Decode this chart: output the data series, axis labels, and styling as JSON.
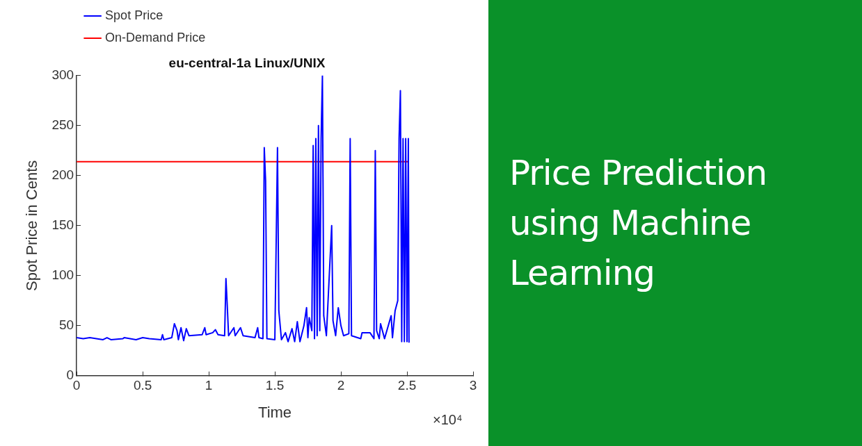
{
  "chart_data": [
    {
      "type": "line",
      "title": "eu-central-1a Linux/UNIX",
      "xlabel": "Time",
      "ylabel": "Spot Price in Cents",
      "annotations": [
        "×10⁴"
      ],
      "xlim": [
        0,
        3
      ],
      "xticks": [
        0,
        0.5,
        1,
        1.5,
        2,
        2.5,
        3
      ],
      "ylim": [
        0,
        300
      ],
      "yticks": [
        0,
        50,
        100,
        150,
        200,
        250,
        300
      ],
      "grid": false,
      "legend": "top left",
      "marker": "none",
      "line_style": "solid",
      "series": [
        {
          "name": "Spot Price",
          "color": "#0000ff",
          "x": [
            0,
            0.05,
            0.1,
            0.2,
            0.23,
            0.26,
            0.35,
            0.36,
            0.45,
            0.5,
            0.55,
            0.64,
            0.65,
            0.66,
            0.72,
            0.74,
            0.76,
            0.77,
            0.79,
            0.81,
            0.83,
            0.85,
            0.95,
            0.97,
            0.98,
            1.03,
            1.05,
            1.07,
            1.12,
            1.13,
            1.14,
            1.15,
            1.19,
            1.2,
            1.24,
            1.26,
            1.35,
            1.37,
            1.38,
            1.41,
            1.42,
            1.43,
            1.44,
            1.5,
            1.52,
            1.53,
            1.55,
            1.58,
            1.6,
            1.63,
            1.65,
            1.67,
            1.69,
            1.72,
            1.74,
            1.75,
            1.76,
            1.78,
            1.79,
            1.8,
            1.81,
            1.82,
            1.83,
            1.84,
            1.85,
            1.86,
            1.87,
            1.89,
            1.93,
            1.94,
            1.96,
            1.98,
            2,
            2.02,
            2.06,
            2.07,
            2.08,
            2.15,
            2.16,
            2.22,
            2.25,
            2.26,
            2.27,
            2.29,
            2.3,
            2.33,
            2.38,
            2.39,
            2.41,
            2.43,
            2.44,
            2.45,
            2.46,
            2.47,
            2.48,
            2.49,
            2.5,
            2.51,
            2.515
          ],
          "values": [
            38,
            37,
            38,
            36,
            38,
            36,
            37,
            38,
            36,
            38,
            37,
            36,
            41,
            36,
            38,
            52,
            45,
            36,
            48,
            35,
            47,
            40,
            41,
            48,
            41,
            43,
            46,
            41,
            40,
            97,
            70,
            40,
            48,
            40,
            48,
            40,
            38,
            48,
            38,
            37,
            228,
            195,
            37,
            36,
            228,
            65,
            36,
            43,
            34,
            47,
            34,
            54,
            34,
            50,
            68,
            38,
            58,
            45,
            230,
            37,
            237,
            40,
            250,
            45,
            237,
            300,
            60,
            40,
            150,
            55,
            40,
            68,
            50,
            40,
            42,
            237,
            40,
            37,
            43,
            43,
            37,
            225,
            45,
            37,
            52,
            37,
            60,
            38,
            65,
            75,
            237,
            285,
            34,
            237,
            34,
            237,
            34,
            237,
            33
          ]
        },
        {
          "name": "On-Demand Price",
          "color": "#ff0000",
          "x": [
            0,
            2.515
          ],
          "values": [
            214,
            214
          ]
        }
      ]
    },
    {
      "type": "other",
      "title": "Price Prediction using Machine Learning"
    }
  ]
}
